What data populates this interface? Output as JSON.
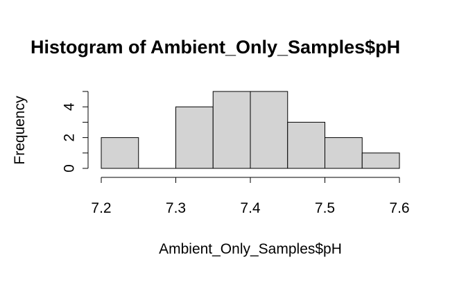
{
  "chart_data": {
    "type": "bar",
    "title": "Histogram of Ambient_Only_Samples$pH",
    "xlabel": "Ambient_Only_Samples$pH",
    "ylabel": "Frequency",
    "bins": [
      {
        "from": 7.2,
        "to": 7.25,
        "count": 2
      },
      {
        "from": 7.25,
        "to": 7.3,
        "count": 0
      },
      {
        "from": 7.3,
        "to": 7.35,
        "count": 4
      },
      {
        "from": 7.35,
        "to": 7.4,
        "count": 5
      },
      {
        "from": 7.4,
        "to": 7.45,
        "count": 5
      },
      {
        "from": 7.45,
        "to": 7.5,
        "count": 3
      },
      {
        "from": 7.5,
        "to": 7.55,
        "count": 2
      },
      {
        "from": 7.55,
        "to": 7.6,
        "count": 1
      }
    ],
    "xlim": [
      7.2,
      7.6
    ],
    "ylim": [
      0,
      5
    ],
    "x_ticks": [
      "7.2",
      "7.3",
      "7.4",
      "7.5",
      "7.6"
    ],
    "y_ticks": [
      "0",
      "2",
      "4"
    ],
    "y_minor_ticks": [
      1,
      3,
      5
    ],
    "bar_color": "#d3d3d3",
    "grid": false
  }
}
